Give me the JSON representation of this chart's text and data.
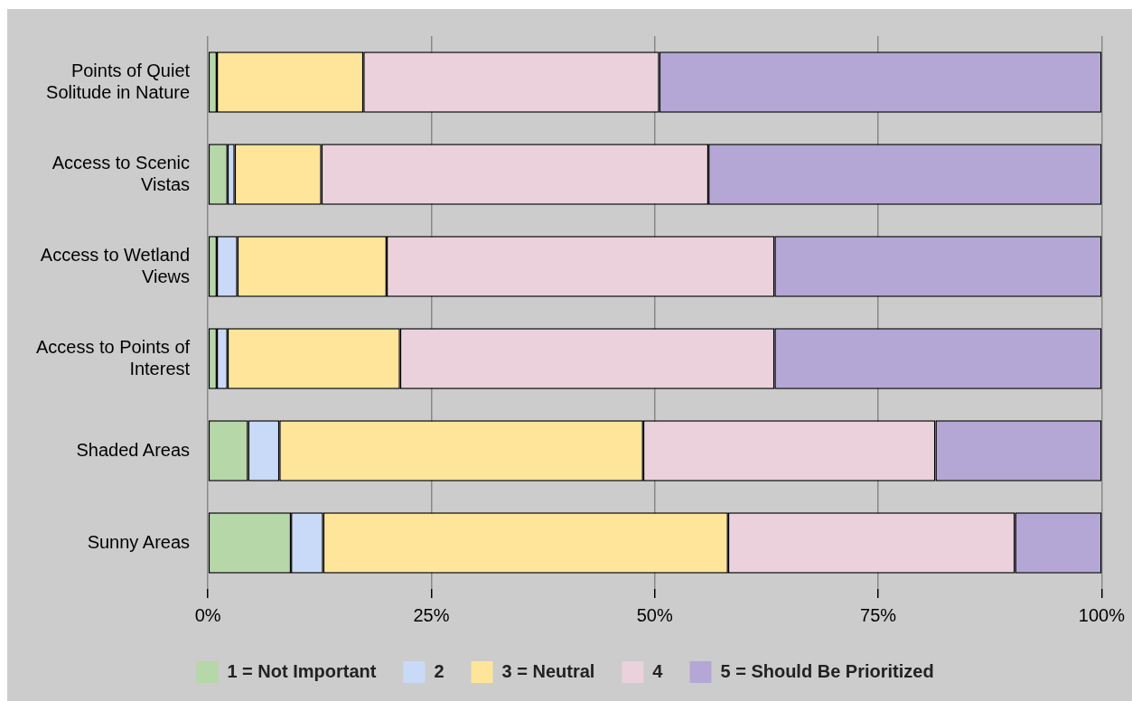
{
  "chart_data": {
    "type": "bar",
    "orientation": "horizontal",
    "stacked": true,
    "categories": [
      "Points of Quiet Solitude in Nature",
      "Access to Scenic Vistas",
      "Access to Wetland Views",
      "Access to Points of Interest",
      "Shaded Areas",
      "Sunny Areas"
    ],
    "series": [
      {
        "name": "1 = Not Important",
        "color": "#b6d7a8",
        "values": [
          1.0,
          2.2,
          1.0,
          1.0,
          4.5,
          9.3
        ]
      },
      {
        "name": "2",
        "color": "#c9daf8",
        "values": [
          null,
          0.8,
          2.3,
          1.2,
          3.5,
          3.6
        ]
      },
      {
        "name": "3 = Neutral",
        "color": "#ffe599",
        "values": [
          16.4,
          9.7,
          16.7,
          19.3,
          40.7,
          45.3
        ]
      },
      {
        "name": "4",
        "color": "#ead1dc",
        "values": [
          33.1,
          43.3,
          43.4,
          41.9,
          32.7,
          32.1
        ]
      },
      {
        "name": "5 = Should Be Prioritized",
        "color": "#b4a7d6",
        "values": [
          49.5,
          44.0,
          36.6,
          36.6,
          18.6,
          9.7
        ]
      }
    ],
    "xlim": [
      0,
      100
    ],
    "xticks": [
      {
        "value": 0,
        "label": "0%"
      },
      {
        "value": 25,
        "label": "25%"
      },
      {
        "value": 50,
        "label": "50%"
      },
      {
        "value": 75,
        "label": "75%"
      },
      {
        "value": 100,
        "label": "100%"
      }
    ],
    "grid": "x",
    "legend": "bottom"
  }
}
